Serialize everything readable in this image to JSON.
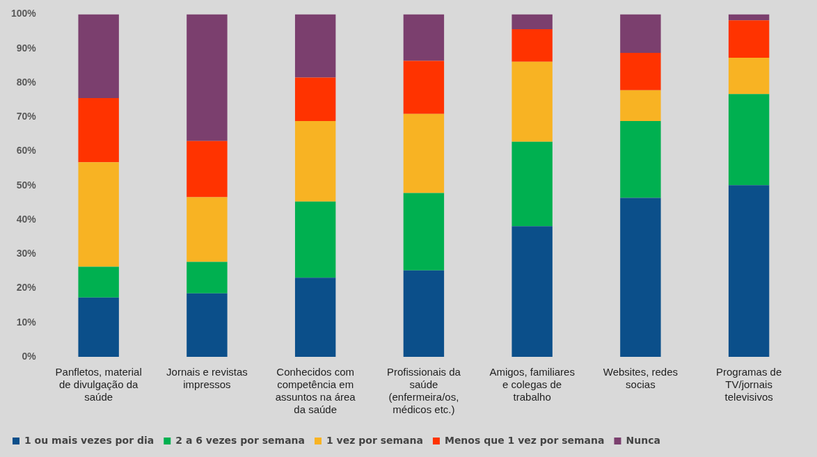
{
  "chart_data": {
    "type": "bar",
    "stacked": true,
    "categories": [
      "Panfletos, material de divulgação da saúde",
      "Jornais e revistas impressos",
      "Conhecidos com competência em assuntos na área da saúde",
      "Profissionais da saúde (enfermeira/os, médicos etc.)",
      "Amigos, familiares e colegas de trabalho",
      "Websites, redes socias",
      "Programas de TV/jornais televisivos"
    ],
    "series": [
      {
        "name": "1 ou mais vezes por dia",
        "color": "#0b4f8a",
        "values": [
          17.3,
          18.5,
          23.1,
          25.2,
          38.1,
          46.4,
          50.1
        ]
      },
      {
        "name": "2 a 6 vezes por semana",
        "color": "#00b050",
        "values": [
          9,
          9.2,
          22.2,
          22.6,
          24.7,
          22.4,
          26.6
        ]
      },
      {
        "name": "1 vez por semana",
        "color": "#f8b323",
        "values": [
          30.5,
          18.9,
          23.5,
          23.1,
          23.3,
          9,
          10.6
        ]
      },
      {
        "name": "Menos que 1 vez por semana",
        "color": "#ff3300",
        "values": [
          18.7,
          16.4,
          12.7,
          15.5,
          9.5,
          10.9,
          10.9
        ]
      },
      {
        "name": "Nunca",
        "color": "#7b3f6e",
        "values": [
          24.5,
          37,
          18.5,
          13.6,
          4.4,
          11.3,
          1.8
        ]
      }
    ],
    "ylim": [
      0,
      100
    ],
    "yticks": [
      {
        "value": 0,
        "label": "0%"
      },
      {
        "value": 10,
        "label": "10%"
      },
      {
        "value": 20,
        "label": "20%"
      },
      {
        "value": 30,
        "label": "30%"
      },
      {
        "value": 40,
        "label": "40%"
      },
      {
        "value": 50,
        "label": "50%"
      },
      {
        "value": 60,
        "label": "60%"
      },
      {
        "value": 70,
        "label": "70%"
      },
      {
        "value": 80,
        "label": "80%"
      },
      {
        "value": 90,
        "label": "90%"
      },
      {
        "value": 100,
        "label": "100%"
      }
    ],
    "grid": false,
    "legend": "bottom"
  }
}
